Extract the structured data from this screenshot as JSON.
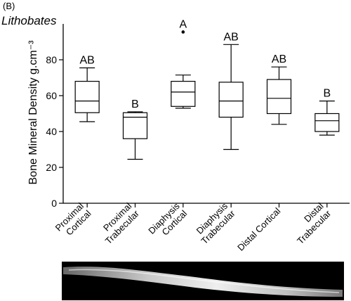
{
  "panel_label": "(B)",
  "genus_label": "Lithobates",
  "chart_data": {
    "type": "box",
    "ylabel": "Bone Mineral Density g.cm⁻³",
    "ylim": [
      0,
      100
    ],
    "yticks": [
      0,
      20,
      40,
      60,
      80
    ],
    "grid": false,
    "categories": [
      {
        "lines": [
          "Proximal",
          "Cortical"
        ]
      },
      {
        "lines": [
          "Proximal",
          "Trabecular"
        ]
      },
      {
        "lines": [
          "Diaphysis",
          "Cortical"
        ]
      },
      {
        "lines": [
          "Diaphysis",
          "Trabecular"
        ]
      },
      {
        "lines": [
          "Distal Cortical"
        ]
      },
      {
        "lines": [
          "Distal",
          "Trabecular"
        ]
      }
    ],
    "boxes": [
      {
        "min": 45.5,
        "q1": 50.5,
        "median": 57,
        "q3": 68,
        "max": 75.5,
        "group": "AB"
      },
      {
        "min": 24.5,
        "q1": 36,
        "median": 48,
        "q3": 50.5,
        "max": 51,
        "group": "B"
      },
      {
        "min": 53,
        "q1": 54,
        "median": 62,
        "q3": 68,
        "max": 71.5,
        "outliers": [
          95.5
        ],
        "group": "A"
      },
      {
        "min": 30,
        "q1": 48,
        "median": 57,
        "q3": 67.5,
        "max": 88.5,
        "group": "AB"
      },
      {
        "min": 44,
        "q1": 50,
        "median": 58.5,
        "q3": 69,
        "max": 76,
        "group": "AB"
      },
      {
        "min": 38,
        "q1": 40,
        "median": 46,
        "q3": 50,
        "max": 57,
        "group": "B"
      }
    ]
  },
  "colors": {
    "box_stroke": "#000000",
    "box_fill": "#ffffff",
    "strip_bg": "#000000",
    "bone": "#d8d8d8"
  }
}
